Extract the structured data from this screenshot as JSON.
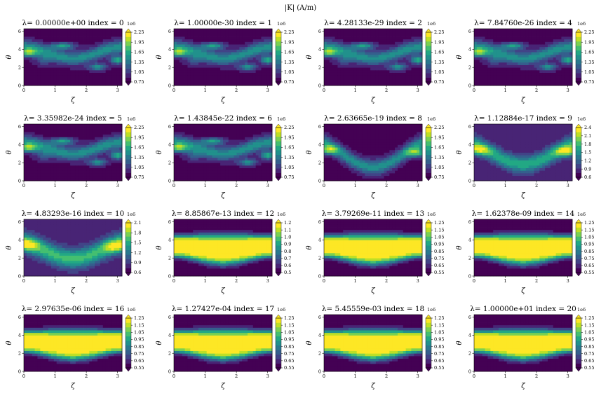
{
  "suptitle": "|K| (A/m)",
  "colormap": [
    "#440154",
    "#482475",
    "#414487",
    "#355f8d",
    "#2a788e",
    "#21918c",
    "#22a884",
    "#44bf70",
    "#7ad151",
    "#bddf26",
    "#fde725"
  ],
  "chart_data": {
    "type": "heatmap",
    "xlabel": "ζ",
    "ylabel": "θ",
    "xlim": [
      0,
      3.14159
    ],
    "ylim": [
      0,
      6.28319
    ],
    "xticks": [
      "0",
      "1",
      "2",
      "3"
    ],
    "yticks": [
      "0",
      "2",
      "4",
      "6"
    ],
    "colorbar_multiplier": "1e6",
    "panels": [
      {
        "title": "λ=  0.00000e+00 index = 0",
        "pattern": "A",
        "cb_ticks": [
          "0.75",
          "1.05",
          "1.35",
          "1.65",
          "1.95",
          "2.25"
        ]
      },
      {
        "title": "λ=  1.00000e-30 index = 1",
        "pattern": "A",
        "cb_ticks": [
          "0.75",
          "1.05",
          "1.35",
          "1.65",
          "1.95",
          "2.25"
        ]
      },
      {
        "title": "λ=  4.28133e-29 index = 2",
        "pattern": "A",
        "cb_ticks": [
          "0.75",
          "1.05",
          "1.35",
          "1.65",
          "1.95",
          "2.25"
        ]
      },
      {
        "title": "λ=  7.84760e-26 index = 4",
        "pattern": "A",
        "cb_ticks": [
          "0.75",
          "1.05",
          "1.35",
          "1.65",
          "1.95",
          "2.25"
        ]
      },
      {
        "title": "λ=  3.35982e-24 index = 5",
        "pattern": "A",
        "cb_ticks": [
          "0.75",
          "1.05",
          "1.35",
          "1.65",
          "1.95",
          "2.25"
        ]
      },
      {
        "title": "λ=  1.43845e-22 index = 6",
        "pattern": "A",
        "cb_ticks": [
          "0.75",
          "1.05",
          "1.35",
          "1.65",
          "1.95",
          "2.25"
        ]
      },
      {
        "title": "λ=  2.63665e-19 index = 8",
        "pattern": "B",
        "cb_ticks": [
          "0.75",
          "1.05",
          "1.35",
          "1.65",
          "1.95",
          "2.25"
        ]
      },
      {
        "title": "λ=  1.12884e-17 index = 9",
        "pattern": "C",
        "cb_ticks": [
          "0.6",
          "0.9",
          "1.2",
          "1.5",
          "1.8",
          "2.1",
          "2.4"
        ]
      },
      {
        "title": "λ=  4.83293e-16 index = 10",
        "pattern": "D",
        "cb_ticks": [
          "0.6",
          "0.9",
          "1.2",
          "1.5",
          "1.8",
          "2.1"
        ]
      },
      {
        "title": "λ=  8.85867e-13 index = 12",
        "pattern": "E",
        "cb_ticks": [
          "0.5",
          "0.6",
          "0.7",
          "0.8",
          "0.9",
          "1.0",
          "1.1",
          "1.2"
        ]
      },
      {
        "title": "λ=  3.79269e-11 index = 13",
        "pattern": "E",
        "cb_ticks": [
          "0.55",
          "0.65",
          "0.75",
          "0.85",
          "0.95",
          "1.05",
          "1.15",
          "1.25"
        ]
      },
      {
        "title": "λ=  1.62378e-09 index = 14",
        "pattern": "E",
        "cb_ticks": [
          "0.55",
          "0.65",
          "0.75",
          "0.85",
          "0.95",
          "1.05",
          "1.15",
          "1.25"
        ]
      },
      {
        "title": "λ=  2.97635e-06 index = 16",
        "pattern": "E",
        "cb_ticks": [
          "0.55",
          "0.65",
          "0.75",
          "0.85",
          "0.95",
          "1.05",
          "1.15",
          "1.25"
        ]
      },
      {
        "title": "λ=  1.27427e-04 index = 17",
        "pattern": "E",
        "cb_ticks": [
          "0.55",
          "0.65",
          "0.75",
          "0.85",
          "0.95",
          "1.05",
          "1.15",
          "1.25"
        ]
      },
      {
        "title": "λ=  5.45559e-03 index = 18",
        "pattern": "E",
        "cb_ticks": [
          "0.55",
          "0.65",
          "0.75",
          "0.85",
          "0.95",
          "1.05",
          "1.15",
          "1.25"
        ]
      },
      {
        "title": "λ=  1.00000e+01 index = 20",
        "pattern": "E",
        "cb_ticks": [
          "0.55",
          "0.65",
          "0.75",
          "0.85",
          "0.95",
          "1.05",
          "1.15",
          "1.25"
        ]
      }
    ]
  }
}
